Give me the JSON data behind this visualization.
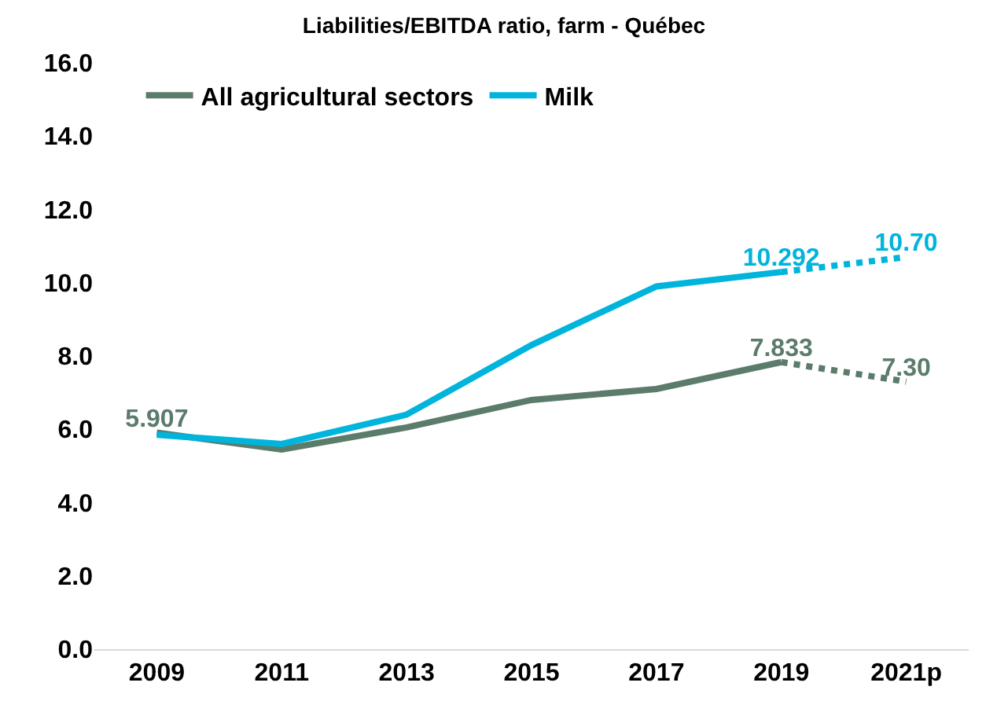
{
  "chart_data": {
    "type": "line",
    "title": "Liabilities/EBITDA ratio, farm - Québec",
    "categories": [
      "2009",
      "2011",
      "2013",
      "2015",
      "2017",
      "2019",
      "2021p"
    ],
    "series": [
      {
        "name": "All agricultural sectors",
        "color": "#5b7b6b",
        "line_style": "solid",
        "values": [
          5.907,
          5.45,
          6.05,
          6.8,
          7.1,
          7.833,
          null
        ],
        "value_labels": [
          "5.907",
          null,
          null,
          null,
          null,
          "7.833",
          null
        ]
      },
      {
        "name": "Milk",
        "color": "#00b4dc",
        "line_style": "solid",
        "values": [
          5.85,
          5.6,
          6.4,
          8.3,
          9.9,
          10.292,
          null
        ],
        "value_labels": [
          null,
          null,
          null,
          null,
          null,
          "10.292",
          null
        ]
      },
      {
        "color": "#5b7b6b",
        "line_style": "dotted",
        "values": [
          null,
          null,
          null,
          null,
          null,
          7.833,
          7.3
        ],
        "value_labels": [
          null,
          null,
          null,
          null,
          null,
          null,
          "7.30"
        ]
      },
      {
        "color": "#00b4dc",
        "line_style": "dotted",
        "values": [
          null,
          null,
          null,
          null,
          null,
          10.292,
          10.7
        ],
        "value_labels": [
          null,
          null,
          null,
          null,
          null,
          null,
          "10.70"
        ]
      }
    ],
    "ylim": [
      0,
      16
    ],
    "yticks": [
      {
        "value": 0,
        "label": "0.0"
      },
      {
        "value": 2,
        "label": "2.0"
      },
      {
        "value": 4,
        "label": "4.0"
      },
      {
        "value": 6,
        "label": "6.0"
      },
      {
        "value": 8,
        "label": "8.0"
      },
      {
        "value": 10,
        "label": "10.0"
      },
      {
        "value": 12,
        "label": "12.0"
      },
      {
        "value": 14,
        "label": "14.0"
      },
      {
        "value": 16,
        "label": "16.0"
      }
    ],
    "legend": "top left",
    "marker": "none"
  }
}
